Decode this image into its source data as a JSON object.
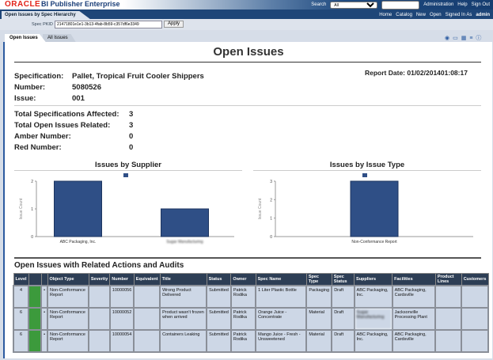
{
  "header": {
    "brand": "ORACLE",
    "product": "BI Publisher Enterprise",
    "search_label": "Search",
    "search_scope": "All",
    "admin": "Administration",
    "help": "Help",
    "signout": "Sign Out"
  },
  "nav": {
    "report_tab": "Open Issues by Spec Hierarchy",
    "home": "Home",
    "catalog": "Catalog",
    "new": "New",
    "open": "Open",
    "signed_in_as": "Signed In As",
    "user": "admin"
  },
  "params": {
    "label": "Spec PKID",
    "value": "21471801e1e1-3b13-4fab-8b59-c357df6e3349",
    "apply": "Apply"
  },
  "tabs": [
    "Open Issues",
    "All Issues"
  ],
  "report": {
    "title": "Open Issues",
    "report_date": "Report Date: 01/02/201401:08:17",
    "info": [
      [
        "Specification:",
        "Pallet, Tropical Fruit Cooler Shippers"
      ],
      [
        "Number:",
        "5080526"
      ],
      [
        "Issue:",
        "001"
      ]
    ],
    "totals": [
      [
        "Total Specifications Affected:",
        "3"
      ],
      [
        "Total Open Issues Related:",
        "3"
      ],
      [
        "Amber Number:",
        "0"
      ],
      [
        "Red Number:",
        "0"
      ]
    ]
  },
  "chart_data": [
    {
      "type": "bar",
      "title": "Issues by Supplier",
      "ylabel": "Issue Count",
      "categories": [
        "ABC Packaging, Inc.",
        "Sugar Manufacturing"
      ],
      "values": [
        2,
        1
      ],
      "ylim": [
        0,
        2
      ],
      "yticks": [
        "0",
        "1",
        "2"
      ]
    },
    {
      "type": "bar",
      "title": "Issues by Issue Type",
      "ylabel": "Issue Count",
      "categories": [
        "Non-Conformance Report"
      ],
      "values": [
        3
      ],
      "ylim": [
        0,
        3
      ],
      "yticks": [
        "0",
        "1",
        "2",
        "3"
      ]
    }
  ],
  "table": {
    "title": "Open Issues with Related Actions and Audits",
    "columns": [
      "Level",
      "",
      "",
      "Object Type",
      "Severity",
      "Number",
      "Equivalent",
      "Title",
      "Status",
      "Owner",
      "Spec Name",
      "Spec Type",
      "Spec Status",
      "Suppliers",
      "Facilities",
      "Product Lines",
      "Customers"
    ],
    "rows": [
      [
        "4",
        "",
        "•",
        "Non-Conformance Report",
        "",
        "10000056",
        "",
        "Wrong Product Delivered",
        "Submitted",
        "Patrick Rodika",
        "1 Liter Plastic Bottle",
        "Packaging",
        "Draft",
        "ABC Packaging, Inc.",
        "ABC Packaging, Cardsville",
        "",
        ""
      ],
      [
        "6",
        "",
        "•",
        "Non-Conformance Report",
        "",
        "10000052",
        "",
        "Product wasn't frozen when arrived",
        "Submitted",
        "Patrick Rodika",
        "Orange Juice - Concentrate",
        "Material",
        "Draft",
        "Sugar Manufacturing",
        "Jacksonville Processing Plant",
        "",
        ""
      ],
      [
        "6",
        "",
        "•",
        "Non-Conformance Report",
        "",
        "10000054",
        "",
        "Containers Leaking",
        "Submitted",
        "Patrick Rodika",
        "Mango Juice - Fresh - Unsweetened",
        "Material",
        "Draft",
        "ABC Packaging, Inc.",
        "ABC Packaging, Cardsville",
        "",
        ""
      ]
    ]
  },
  "colors": {
    "bar": "#2f4f86",
    "status": "#3c9a3c"
  }
}
